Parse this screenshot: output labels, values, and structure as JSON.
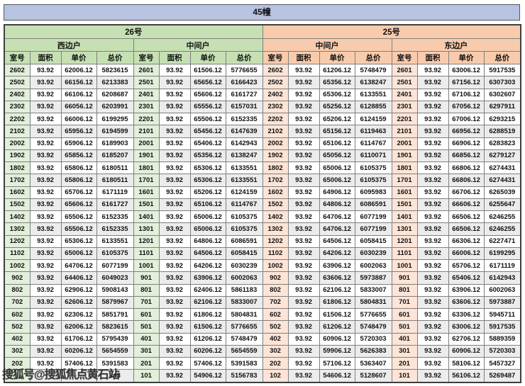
{
  "title": "45幢",
  "watermark": "搜狐号@搜狐焦点黄石站",
  "columns": [
    "室号",
    "面积",
    "单价",
    "总价"
  ],
  "colors": {
    "title_bar": "#b7c3e1",
    "building_26": "#c6e0b4",
    "building_25": "#f8cbad",
    "room_tint_26": "#e2efda",
    "room_tint_25": "#fce4d6",
    "row_stripe": "#ececec",
    "border": "#7f7f7f"
  },
  "buildings": [
    {
      "label": "26号",
      "theme": "g",
      "units": [
        {
          "label": "西边户",
          "rows": [
            [
              "2602",
              "93.92",
              "62006.12",
              "5823615"
            ],
            [
              "2502",
              "93.92",
              "66156.12",
              "6213383"
            ],
            [
              "2402",
              "93.92",
              "66106.12",
              "6208687"
            ],
            [
              "2302",
              "93.92",
              "66056.12",
              "6203991"
            ],
            [
              "2202",
              "93.92",
              "66006.12",
              "6199295"
            ],
            [
              "2102",
              "93.92",
              "65956.12",
              "6194599"
            ],
            [
              "2002",
              "93.92",
              "65906.12",
              "6189903"
            ],
            [
              "1902",
              "93.92",
              "65856.12",
              "6185207"
            ],
            [
              "1802",
              "93.92",
              "65806.12",
              "6180511"
            ],
            [
              "1702",
              "93.92",
              "65806.12",
              "6180511"
            ],
            [
              "1602",
              "93.92",
              "65706.12",
              "6171119"
            ],
            [
              "1502",
              "93.92",
              "65606.12",
              "6161727"
            ],
            [
              "1402",
              "93.92",
              "65506.12",
              "6152335"
            ],
            [
              "1302",
              "93.92",
              "65506.12",
              "6152335"
            ],
            [
              "1202",
              "93.92",
              "65306.12",
              "6133551"
            ],
            [
              "1102",
              "93.92",
              "65006.12",
              "6105375"
            ],
            [
              "1002",
              "93.92",
              "64706.12",
              "6077199"
            ],
            [
              "902",
              "93.92",
              "64406.12",
              "6049023"
            ],
            [
              "802",
              "93.92",
              "62906.12",
              "5908143"
            ],
            [
              "702",
              "93.92",
              "62606.12",
              "5879967"
            ],
            [
              "602",
              "93.92",
              "62306.12",
              "5851791"
            ],
            [
              "502",
              "93.92",
              "62006.12",
              "5823615"
            ],
            [
              "402",
              "93.92",
              "61706.12",
              "5795439"
            ],
            [
              "302",
              "93.92",
              "60206.12",
              "5654559"
            ],
            [
              "202",
              "93.92",
              "57406.12",
              "5391583"
            ],
            [
              "",
              "",
              "",
              "743"
            ]
          ]
        },
        {
          "label": "中间户",
          "rows": [
            [
              "2601",
              "93.92",
              "61506.12",
              "5776655"
            ],
            [
              "2501",
              "93.92",
              "65656.12",
              "6166423"
            ],
            [
              "2401",
              "93.92",
              "65606.12",
              "6161727"
            ],
            [
              "2301",
              "93.92",
              "65556.12",
              "6157031"
            ],
            [
              "2201",
              "93.92",
              "65506.12",
              "6152335"
            ],
            [
              "2101",
              "93.92",
              "65456.12",
              "6147639"
            ],
            [
              "2001",
              "93.92",
              "65406.12",
              "6142943"
            ],
            [
              "1901",
              "93.92",
              "65356.12",
              "6138247"
            ],
            [
              "1801",
              "93.92",
              "65306.12",
              "6133551"
            ],
            [
              "1701",
              "93.92",
              "65306.12",
              "6133551"
            ],
            [
              "1601",
              "93.92",
              "65206.12",
              "6124159"
            ],
            [
              "1501",
              "93.92",
              "65106.12",
              "6114767"
            ],
            [
              "1401",
              "93.92",
              "65006.12",
              "6105375"
            ],
            [
              "1301",
              "93.92",
              "65006.12",
              "6105375"
            ],
            [
              "1201",
              "93.92",
              "64806.12",
              "6086591"
            ],
            [
              "1101",
              "93.92",
              "64506.12",
              "6058415"
            ],
            [
              "1001",
              "93.92",
              "64206.12",
              "6030239"
            ],
            [
              "901",
              "93.92",
              "63906.12",
              "6002063"
            ],
            [
              "801",
              "93.92",
              "62406.12",
              "5861183"
            ],
            [
              "701",
              "93.92",
              "62106.12",
              "5833007"
            ],
            [
              "601",
              "93.92",
              "61806.12",
              "5804831"
            ],
            [
              "501",
              "93.92",
              "61506.12",
              "5776655"
            ],
            [
              "401",
              "93.92",
              "61206.12",
              "5748479"
            ],
            [
              "301",
              "93.92",
              "60206.12",
              "5654559"
            ],
            [
              "201",
              "93.92",
              "57406.12",
              "5391583"
            ],
            [
              "101",
              "93.92",
              "54906.12",
              "5156783"
            ]
          ]
        }
      ]
    },
    {
      "label": "25号",
      "theme": "o",
      "units": [
        {
          "label": "中间户",
          "rows": [
            [
              "2602",
              "93.92",
              "61206.12",
              "5748479"
            ],
            [
              "2502",
              "93.92",
              "65356.12",
              "6138247"
            ],
            [
              "2402",
              "93.92",
              "65306.12",
              "6133551"
            ],
            [
              "2302",
              "93.92",
              "65256.12",
              "6128855"
            ],
            [
              "2202",
              "93.92",
              "65206.12",
              "6124159"
            ],
            [
              "2102",
              "93.92",
              "65156.12",
              "6119463"
            ],
            [
              "2002",
              "93.92",
              "65106.12",
              "6114767"
            ],
            [
              "1902",
              "93.92",
              "65056.12",
              "6110071"
            ],
            [
              "1802",
              "93.92",
              "65006.12",
              "6105375"
            ],
            [
              "1702",
              "93.92",
              "65006.12",
              "6105375"
            ],
            [
              "1602",
              "93.92",
              "64906.12",
              "6095983"
            ],
            [
              "1502",
              "93.92",
              "64806.12",
              "6086591"
            ],
            [
              "1402",
              "93.92",
              "64706.12",
              "6077199"
            ],
            [
              "1302",
              "93.92",
              "64706.12",
              "6077199"
            ],
            [
              "1202",
              "93.92",
              "64506.12",
              "6058415"
            ],
            [
              "1102",
              "93.92",
              "64206.12",
              "6030239"
            ],
            [
              "1002",
              "93.92",
              "63906.12",
              "6002063"
            ],
            [
              "902",
              "93.92",
              "63606.12",
              "5973887"
            ],
            [
              "802",
              "93.92",
              "62106.12",
              "5833007"
            ],
            [
              "702",
              "93.92",
              "61806.12",
              "5804831"
            ],
            [
              "602",
              "93.92",
              "61506.12",
              "5776655"
            ],
            [
              "502",
              "93.92",
              "61206.12",
              "5748479"
            ],
            [
              "402",
              "93.92",
              "60906.12",
              "5720303"
            ],
            [
              "302",
              "93.92",
              "59906.12",
              "5626383"
            ],
            [
              "202",
              "93.92",
              "57106.12",
              "5363407"
            ],
            [
              "102",
              "93.92",
              "54606.12",
              "5128607"
            ]
          ]
        },
        {
          "label": "东边户",
          "rows": [
            [
              "2601",
              "93.92",
              "63006.12",
              "5917535"
            ],
            [
              "2501",
              "93.92",
              "67156.12",
              "6307303"
            ],
            [
              "2401",
              "93.92",
              "67106.12",
              "6302607"
            ],
            [
              "2301",
              "93.92",
              "67056.12",
              "6297911"
            ],
            [
              "2201",
              "93.92",
              "67006.12",
              "6293215"
            ],
            [
              "2101",
              "93.92",
              "66956.12",
              "6288519"
            ],
            [
              "2001",
              "93.92",
              "66906.12",
              "6283823"
            ],
            [
              "1901",
              "93.92",
              "66856.12",
              "6279127"
            ],
            [
              "1801",
              "93.92",
              "66806.12",
              "6274431"
            ],
            [
              "1701",
              "93.92",
              "66806.12",
              "6274431"
            ],
            [
              "1601",
              "93.92",
              "66706.12",
              "6265039"
            ],
            [
              "1501",
              "93.92",
              "66606.12",
              "6255647"
            ],
            [
              "1401",
              "93.92",
              "66506.12",
              "6246255"
            ],
            [
              "1301",
              "93.92",
              "66506.12",
              "6246255"
            ],
            [
              "1201",
              "93.92",
              "66306.12",
              "6227471"
            ],
            [
              "1101",
              "93.92",
              "66006.12",
              "6199295"
            ],
            [
              "1001",
              "93.92",
              "65706.12",
              "6171119"
            ],
            [
              "901",
              "93.92",
              "65406.12",
              "6142943"
            ],
            [
              "801",
              "93.92",
              "63906.12",
              "6002063"
            ],
            [
              "701",
              "93.92",
              "63606.12",
              "5973887"
            ],
            [
              "601",
              "93.92",
              "63306.12",
              "5945711"
            ],
            [
              "501",
              "93.92",
              "63006.12",
              "5917535"
            ],
            [
              "401",
              "93.92",
              "62706.12",
              "5889359"
            ],
            [
              "301",
              "93.92",
              "60906.12",
              "5720303"
            ],
            [
              "201",
              "93.92",
              "58106.12",
              "5457327"
            ],
            [
              "101",
              "93.92",
              "56106.12",
              "5269487"
            ]
          ]
        }
      ]
    }
  ]
}
